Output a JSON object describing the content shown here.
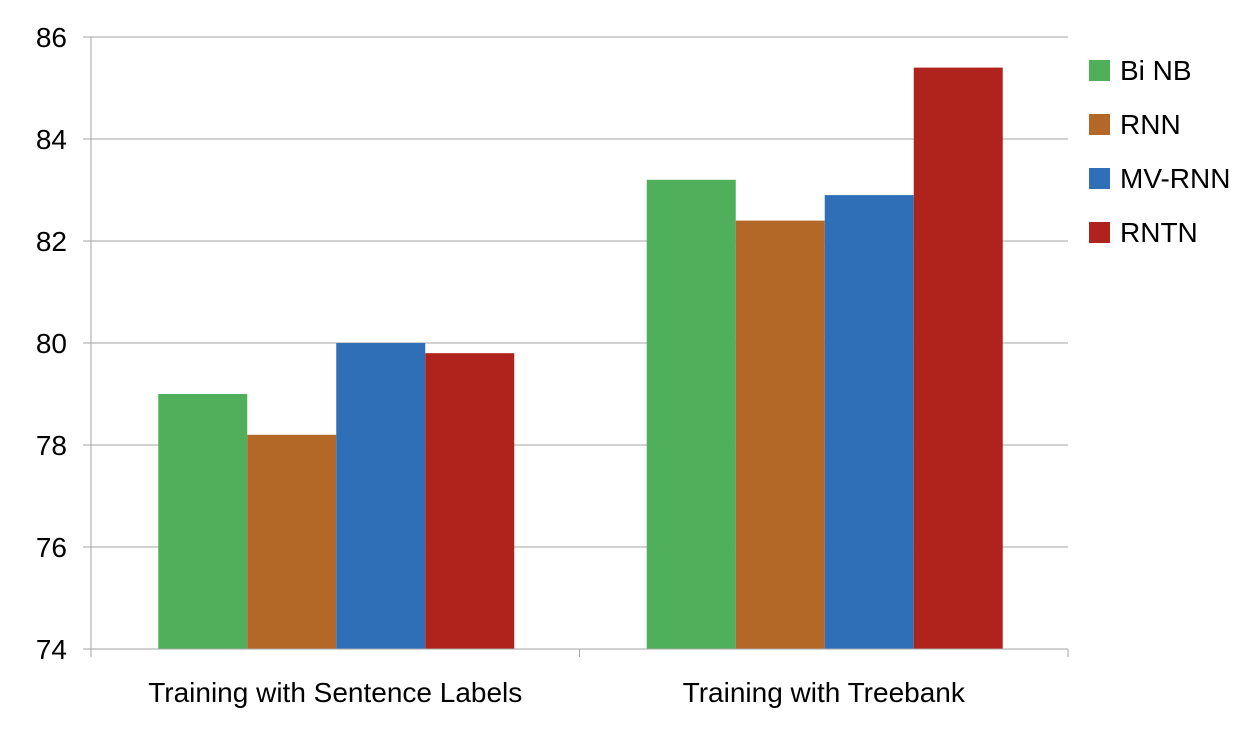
{
  "chart_data": {
    "type": "bar",
    "categories": [
      "Training with Sentence Labels",
      "Training with Treebank"
    ],
    "series": [
      {
        "name": "Bi NB",
        "values": [
          79.0,
          83.2
        ],
        "color": "#4faf5a"
      },
      {
        "name": "RNN",
        "values": [
          78.2,
          82.4
        ],
        "color": "#b46827"
      },
      {
        "name": "MV-RNN",
        "values": [
          80.0,
          82.9
        ],
        "color": "#2e6fb8"
      },
      {
        "name": "RNTN",
        "values": [
          79.8,
          85.4
        ],
        "color": "#b0231c"
      }
    ],
    "ylim": [
      74,
      86
    ],
    "yticks": [
      "74",
      "76",
      "78",
      "80",
      "82",
      "84",
      "86"
    ],
    "grid": true,
    "legend_position": "right"
  }
}
